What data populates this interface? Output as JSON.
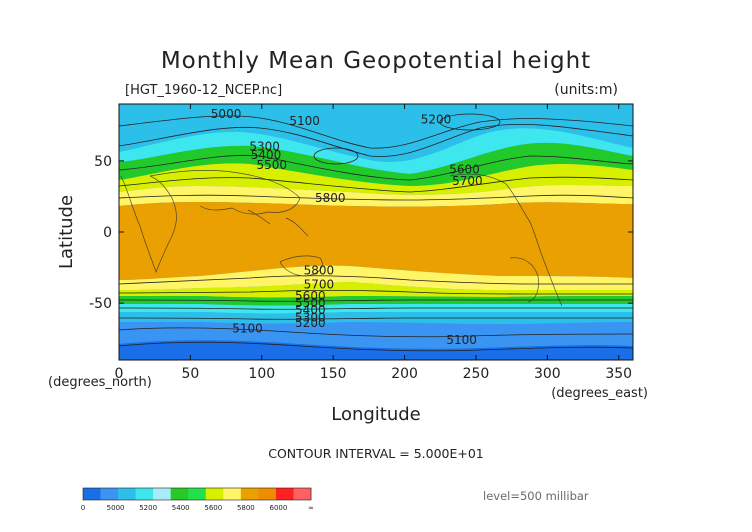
{
  "chart_data": {
    "type": "contour-map",
    "title": "Monthly Mean Geopotential height",
    "file_label": "[HGT_1960-12_NCEP.nc]",
    "units_label": "(units:m)",
    "xlabel": "Longitude",
    "ylabel": "Latitude",
    "x_unit_label": "(degrees_east)",
    "y_unit_label": "(degrees_north)",
    "xlim": [
      0,
      360
    ],
    "ylim": [
      -90,
      90
    ],
    "x_ticks": [
      0,
      50,
      100,
      150,
      200,
      250,
      300,
      350
    ],
    "y_ticks": [
      -50,
      0,
      50
    ],
    "contour_interval_text": "CONTOUR INTERVAL = 5.000E+01",
    "level_text": "level=500 millibar",
    "contour_labels": [
      {
        "text": "5000",
        "lon": 75,
        "lat": 83
      },
      {
        "text": "5100",
        "lon": 130,
        "lat": 78
      },
      {
        "text": "5200",
        "lon": 222,
        "lat": 79
      },
      {
        "text": "5300",
        "lon": 102,
        "lat": 60
      },
      {
        "text": "5400",
        "lon": 103,
        "lat": 54
      },
      {
        "text": "5500",
        "lon": 107,
        "lat": 47
      },
      {
        "text": "5600",
        "lon": 242,
        "lat": 44
      },
      {
        "text": "5700",
        "lon": 244,
        "lat": 36
      },
      {
        "text": "5800",
        "lon": 148,
        "lat": 24
      },
      {
        "text": "5800",
        "lon": 140,
        "lat": -27
      },
      {
        "text": "5700",
        "lon": 140,
        "lat": -37
      },
      {
        "text": "5600",
        "lon": 134,
        "lat": -45
      },
      {
        "text": "5500",
        "lon": 134,
        "lat": -50
      },
      {
        "text": "5400",
        "lon": 134,
        "lat": -55
      },
      {
        "text": "5300",
        "lon": 134,
        "lat": -60
      },
      {
        "text": "5200",
        "lon": 134,
        "lat": -64
      },
      {
        "text": "5100",
        "lon": 90,
        "lat": -68
      },
      {
        "text": "5100",
        "lon": 240,
        "lat": -76
      }
    ],
    "colorbar": {
      "colors": [
        "#1a6ee8",
        "#3a94f2",
        "#2cbfea",
        "#3ee6ee",
        "#a7ecf8",
        "#26c926",
        "#22e04a",
        "#d8f000",
        "#fff566",
        "#eaa000",
        "#f08c00",
        "#ff2020",
        "#ff6060"
      ],
      "labels": [
        "0",
        "5000",
        "5200",
        "5400",
        "5600",
        "5800",
        "6000",
        "∞"
      ]
    }
  }
}
